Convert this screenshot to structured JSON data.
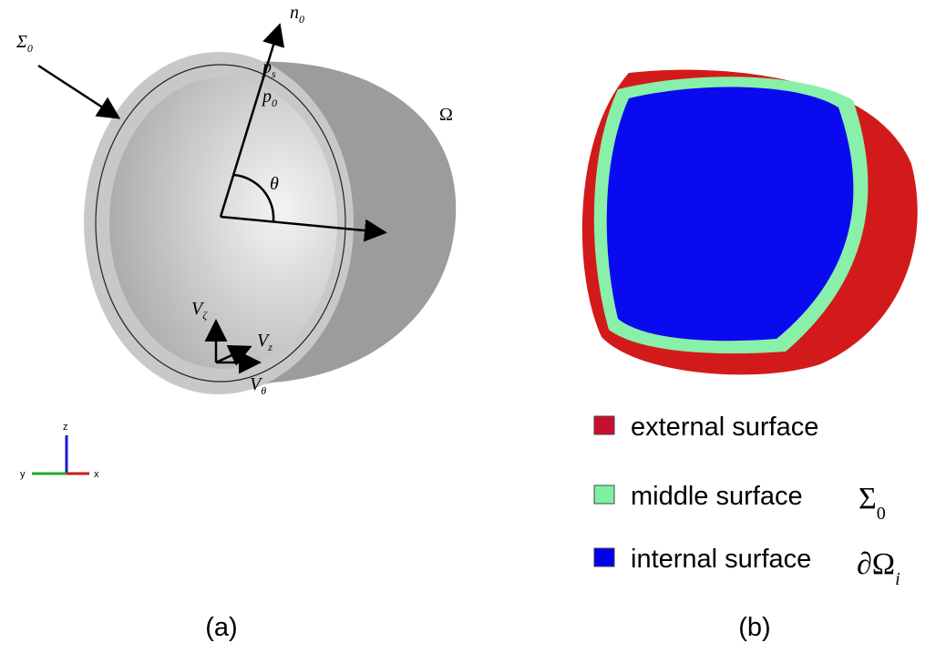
{
  "panel_a": {
    "labels": {
      "sigma": {
        "symbol": "Σ",
        "sub": "0"
      },
      "normal": {
        "symbol": "n",
        "sub": "0"
      },
      "ps": {
        "symbol": "p",
        "sub": "s"
      },
      "p0": {
        "symbol": "p",
        "sub": "0"
      },
      "omega": "Ω",
      "theta": "θ",
      "v_zeta": {
        "symbol": "V",
        "sub": "ζ"
      },
      "v_z": {
        "symbol": "V",
        "sub": "z"
      },
      "v_theta": {
        "symbol": "V",
        "sub": "θ"
      }
    },
    "axes": {
      "z": "z",
      "y": "y",
      "x": "x"
    },
    "caption": "(a)"
  },
  "panel_b": {
    "legend": [
      {
        "label": "external surface",
        "color": "#c8102e"
      },
      {
        "label": "middle surface",
        "symbol": "Σ",
        "sub": "0",
        "color": "#7ff0a0"
      },
      {
        "label": "internal surface",
        "symbol": "∂Ω",
        "sub": "i",
        "color": "#0000ee"
      }
    ],
    "caption": "(b)"
  }
}
